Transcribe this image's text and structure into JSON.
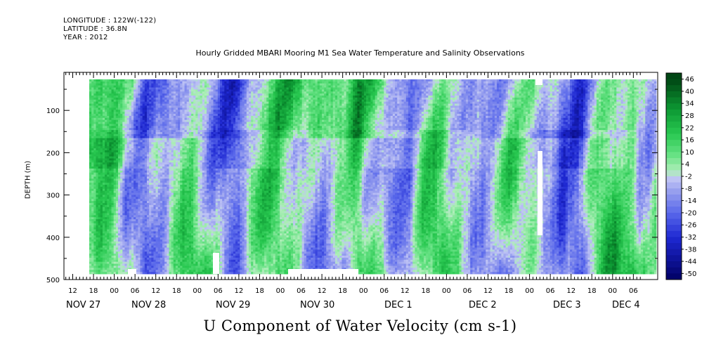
{
  "header": {
    "longitude": "LONGITUDE : 122W(-122)",
    "latitude": "LATITUDE : 36.8N",
    "year": "YEAR : 2012"
  },
  "chart_data": {
    "type": "heatmap",
    "title": "Hourly Gridded MBARI Mooring M1 Sea Water Temperature and Salinity Observations",
    "xlabel": "U Component of Water Velocity (cm s-1)",
    "ylabel": "DEPTH (m)",
    "y_ticks": [
      "100",
      "200",
      "300",
      "400",
      "500"
    ],
    "ylim": [
      500,
      10
    ],
    "x_hour_ticks": [
      "12",
      "18",
      "00",
      "06",
      "12",
      "18",
      "00",
      "06",
      "12",
      "18",
      "00",
      "06",
      "12",
      "18",
      "00",
      "06",
      "12",
      "18",
      "00",
      "06",
      "12",
      "18",
      "00",
      "06",
      "12",
      "18",
      "00",
      "06"
    ],
    "x_day_labels": [
      "NOV 27",
      "NOV 28",
      "NOV 29",
      "NOV 30",
      "DEC  1",
      "DEC  2",
      "DEC  3",
      "DEC  4"
    ],
    "colorbar_labels": [
      "46",
      "40",
      "34",
      "28",
      "22",
      "16",
      "10",
      "4",
      "-2",
      "-8",
      "-14",
      "-20",
      "-26",
      "-32",
      "-38",
      "-44",
      "-50"
    ],
    "colors": {
      "strong_positive": "#0a5a1a",
      "positive": "#33d466",
      "weak_positive": "#a6ecb0",
      "weak_negative": "#b3b8ee",
      "negative": "#3f55e8",
      "strong_negative": "#0a1a7a"
    }
  }
}
